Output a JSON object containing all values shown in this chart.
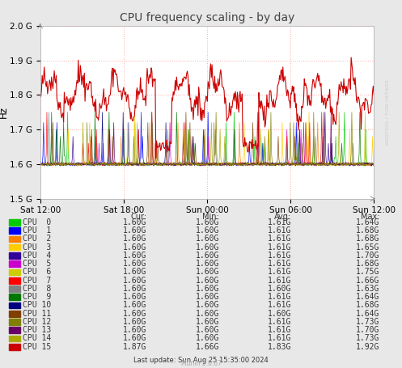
{
  "title": "CPU frequency scaling - by day",
  "ylabel": "Hz",
  "watermark": "RRDTOOL / TOBI OETIKER",
  "munin_version": "Munin 2.0.67",
  "last_update": "Last update: Sun Aug 25 15:35:00 2024",
  "bg_color": "#e8e8e8",
  "plot_bg_color": "#ffffff",
  "grid_color": "#ffaaaa",
  "ylim": [
    1500000000.0,
    2000000000.0
  ],
  "yticks": [
    1500000000.0,
    1600000000.0,
    1700000000.0,
    1800000000.0,
    1900000000.0,
    2000000000.0
  ],
  "ytick_labels": [
    "1.5 G",
    "1.6 G",
    "1.7 G",
    "1.8 G",
    "1.9 G",
    "2.0 G"
  ],
  "xtick_labels": [
    "Sat 12:00",
    "Sat 18:00",
    "Sun 00:00",
    "Sun 06:00",
    "Sun 12:00"
  ],
  "cpu_colors": [
    "#00cc00",
    "#0000ff",
    "#ff7f00",
    "#ffcc00",
    "#330099",
    "#cc00cc",
    "#cccc00",
    "#ff0000",
    "#808080",
    "#007700",
    "#00007f",
    "#7f3f00",
    "#808000",
    "#660066",
    "#aaaa00",
    "#cc0000"
  ],
  "cpu_labels": [
    "CPU  0",
    "CPU  1",
    "CPU  2",
    "CPU  3",
    "CPU  4",
    "CPU  5",
    "CPU  6",
    "CPU  7",
    "CPU  8",
    "CPU  9",
    "CPU 10",
    "CPU 11",
    "CPU 12",
    "CPU 13",
    "CPU 14",
    "CPU 15"
  ],
  "legend_cur": [
    "1.60G",
    "1.60G",
    "1.60G",
    "1.60G",
    "1.60G",
    "1.60G",
    "1.60G",
    "1.60G",
    "1.60G",
    "1.60G",
    "1.60G",
    "1.60G",
    "1.60G",
    "1.60G",
    "1.60G",
    "1.87G"
  ],
  "legend_min": [
    "1.60G",
    "1.60G",
    "1.60G",
    "1.60G",
    "1.60G",
    "1.60G",
    "1.60G",
    "1.60G",
    "1.60G",
    "1.60G",
    "1.60G",
    "1.60G",
    "1.60G",
    "1.60G",
    "1.60G",
    "1.66G"
  ],
  "legend_avg": [
    "1.61G",
    "1.61G",
    "1.61G",
    "1.61G",
    "1.61G",
    "1.61G",
    "1.61G",
    "1.61G",
    "1.60G",
    "1.61G",
    "1.61G",
    "1.60G",
    "1.61G",
    "1.61G",
    "1.61G",
    "1.83G"
  ],
  "legend_max": [
    "1.64G",
    "1.68G",
    "1.68G",
    "1.65G",
    "1.70G",
    "1.68G",
    "1.75G",
    "1.66G",
    "1.63G",
    "1.64G",
    "1.68G",
    "1.64G",
    "1.73G",
    "1.70G",
    "1.73G",
    "1.92G"
  ],
  "title_fontsize": 10,
  "axis_fontsize": 7.5,
  "legend_fontsize": 7.0
}
